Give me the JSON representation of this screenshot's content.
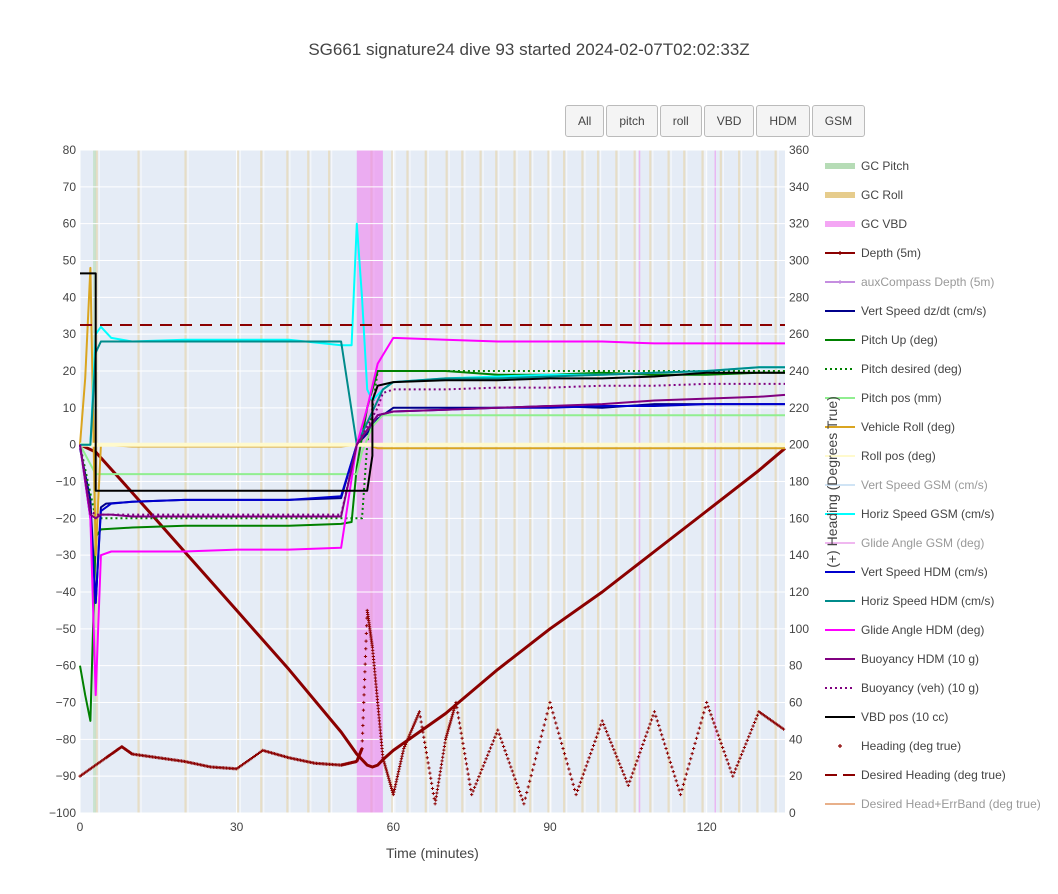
{
  "title": "SG661 signature24 dive 93 started 2024-02-07T02:02:33Z",
  "buttons": [
    "All",
    "pitch",
    "roll",
    "VBD",
    "HDM",
    "GSM"
  ],
  "chart_data": {
    "type": "line",
    "xlabel": "Time (minutes)",
    "ylabel": "",
    "y2label": "(+) Heading (Degrees True)",
    "xlim": [
      0,
      135
    ],
    "ylim": [
      -100,
      80
    ],
    "y2lim": [
      0,
      360
    ],
    "xticks": [
      0,
      30,
      60,
      90,
      120
    ],
    "yticks": [
      -100,
      -90,
      -80,
      -70,
      -60,
      -50,
      -40,
      -30,
      -20,
      -10,
      0,
      10,
      20,
      30,
      40,
      50,
      60,
      70,
      80
    ],
    "y2ticks": [
      0,
      20,
      40,
      60,
      80,
      100,
      120,
      140,
      160,
      180,
      200,
      220,
      240,
      260,
      280,
      300,
      320,
      340,
      360
    ],
    "grid": true,
    "legend_position": "right",
    "gc_vbd_band": [
      53,
      58
    ],
    "series": [
      {
        "name": "GC Pitch",
        "color": "#b6dcb6",
        "style": "band",
        "visible": true
      },
      {
        "name": "GC Roll",
        "color": "#e6cc8c",
        "style": "band",
        "visible": true
      },
      {
        "name": "GC VBD",
        "color": "#f4a6f4",
        "style": "band",
        "visible": true
      },
      {
        "name": "Depth (5m)",
        "color": "#8b0000",
        "style": "line-marker",
        "visible": true,
        "x": [
          0,
          3,
          10,
          20,
          30,
          40,
          50,
          53,
          55,
          56,
          57,
          58,
          60,
          70,
          80,
          90,
          100,
          110,
          120,
          130,
          135
        ],
        "y": [
          0,
          -2,
          -13,
          -29,
          -45,
          -61,
          -78,
          -84,
          -87,
          -87.5,
          -87,
          -85.5,
          -83,
          -73,
          -61,
          -50,
          -40,
          -29,
          -18,
          -7,
          -1
        ]
      },
      {
        "name": "auxCompass Depth (5m)",
        "color": "#c58ee0",
        "style": "line-marker",
        "visible": false
      },
      {
        "name": "Vert Speed dz/dt (cm/s)",
        "color": "#00008b",
        "style": "line",
        "visible": true,
        "x": [
          0,
          2,
          3,
          4,
          5,
          10,
          20,
          30,
          40,
          50,
          53,
          55,
          57,
          59,
          60,
          70,
          80,
          90,
          100,
          110,
          120,
          130,
          135
        ],
        "y": [
          -1,
          -15,
          -43,
          -17,
          -16,
          -15.5,
          -15,
          -15,
          -15,
          -14.5,
          0,
          3,
          7,
          9,
          10,
          10,
          10,
          10.5,
          10,
          11,
          11,
          11,
          11
        ]
      },
      {
        "name": "Pitch Up (deg)",
        "color": "#008000",
        "style": "line",
        "visible": true,
        "x": [
          0,
          1,
          2,
          3,
          4,
          10,
          20,
          30,
          40,
          50,
          52,
          53,
          55,
          57,
          60,
          70,
          80,
          90,
          100,
          110,
          120,
          130,
          135
        ],
        "y": [
          -60,
          -68,
          -75,
          -25,
          -23,
          -22.5,
          -22,
          -22,
          -22,
          -21.5,
          -21,
          -6,
          10,
          20,
          20,
          20,
          19,
          19,
          19.5,
          19,
          19,
          19.5,
          19.5
        ]
      },
      {
        "name": "Pitch desired (deg)",
        "color": "#008000",
        "style": "dot",
        "visible": true,
        "x": [
          0,
          3,
          5,
          20,
          40,
          52,
          54,
          55,
          57,
          60,
          70,
          80,
          90,
          100,
          110,
          120,
          130,
          135
        ],
        "y": [
          0,
          -20,
          -20,
          -20,
          -20,
          -20,
          -20,
          0,
          20,
          20,
          20,
          20,
          20,
          20,
          20,
          20,
          20,
          20
        ]
      },
      {
        "name": "Pitch pos (mm)",
        "color": "#90ee90",
        "style": "line",
        "visible": true,
        "x": [
          0,
          3,
          5,
          20,
          40,
          53,
          54,
          56,
          58,
          60,
          80,
          100,
          120,
          135
        ],
        "y": [
          0,
          -8,
          -8,
          -8,
          -8,
          -8,
          -2,
          5,
          8,
          8,
          8,
          8,
          8,
          8
        ]
      },
      {
        "name": "Vehicle Roll (deg)",
        "color": "#daa520",
        "style": "line",
        "visible": true,
        "x": [
          0,
          1,
          2,
          3,
          4,
          10,
          20,
          30,
          40,
          50,
          53,
          55,
          57,
          60,
          70,
          80,
          90,
          100,
          110,
          120,
          130,
          135
        ],
        "y": [
          0,
          18,
          48,
          -30,
          0,
          -0.5,
          -0.5,
          -0.5,
          -0.5,
          -0.5,
          0,
          0,
          -1,
          -1,
          -1,
          -1,
          -1,
          -1,
          -1,
          -1,
          -1,
          -1
        ]
      },
      {
        "name": "Roll pos (deg)",
        "color": "#fffacd",
        "style": "line",
        "visible": true,
        "x": [
          0,
          135
        ],
        "y": [
          0,
          0
        ]
      },
      {
        "name": "Vert Speed GSM (cm/s)",
        "color": "#d0e4f5",
        "style": "line",
        "visible": false
      },
      {
        "name": "Horiz Speed GSM (cm/s)",
        "color": "#00ffff",
        "style": "line",
        "visible": true,
        "x": [
          0,
          2,
          3,
          4,
          6,
          10,
          20,
          30,
          40,
          50,
          52,
          53,
          54,
          55,
          56,
          58,
          60,
          70,
          80,
          90,
          100,
          110,
          120,
          130,
          135
        ],
        "y": [
          0,
          0,
          30,
          32,
          29,
          28,
          28.5,
          28.5,
          28.5,
          27,
          27,
          60,
          40,
          15,
          12,
          15,
          17,
          18,
          18.5,
          19,
          19,
          19.5,
          20,
          21,
          21
        ]
      },
      {
        "name": "Glide Angle GSM (deg)",
        "color": "#f0b8f0",
        "style": "line",
        "visible": false
      },
      {
        "name": "Vert Speed HDM (cm/s)",
        "color": "#0000cd",
        "style": "line",
        "visible": true,
        "x": [
          0,
          2,
          3,
          4,
          6,
          10,
          20,
          30,
          40,
          50,
          53,
          55,
          57,
          60,
          70,
          80,
          90,
          100,
          110,
          120,
          130,
          135
        ],
        "y": [
          0,
          -20,
          -43,
          -18,
          -16,
          -15.5,
          -15,
          -15,
          -15,
          -14,
          0,
          4,
          8,
          9,
          9.5,
          10,
          10,
          10.5,
          10.5,
          11,
          11,
          11
        ]
      },
      {
        "name": "Horiz Speed HDM (cm/s)",
        "color": "#008b8b",
        "style": "line",
        "visible": true,
        "x": [
          0,
          2,
          3,
          4,
          6,
          10,
          20,
          30,
          40,
          50,
          53,
          55,
          57,
          58,
          60,
          70,
          80,
          90,
          100,
          110,
          120,
          130,
          135
        ],
        "y": [
          0,
          0,
          25,
          28,
          28,
          28,
          28,
          28,
          28,
          28,
          0,
          6,
          12,
          15,
          17,
          18,
          18,
          18.5,
          19,
          19.5,
          20,
          21,
          21
        ]
      },
      {
        "name": "Glide Angle HDM (deg)",
        "color": "#ff00ff",
        "style": "line",
        "visible": true,
        "x": [
          0,
          2,
          3,
          4,
          6,
          10,
          20,
          30,
          40,
          50,
          53,
          55,
          57,
          60,
          70,
          80,
          90,
          100,
          110,
          120,
          130,
          135
        ],
        "y": [
          0,
          -20,
          -68,
          -30,
          -29,
          -29,
          -29,
          -28.5,
          -28.5,
          -28,
          0,
          10,
          22,
          29,
          28.5,
          28,
          28,
          28,
          27.5,
          27.5,
          27.5,
          27.5
        ]
      },
      {
        "name": "Buoyancy HDM (10 g)",
        "color": "#800080",
        "style": "line",
        "visible": true,
        "x": [
          0,
          2,
          3,
          4,
          6,
          10,
          20,
          30,
          40,
          50,
          53,
          55,
          57,
          60,
          70,
          80,
          90,
          100,
          110,
          120,
          130,
          135
        ],
        "y": [
          0,
          -19,
          -20,
          -19,
          -19,
          -19.5,
          -19.5,
          -19.5,
          -19.5,
          -19.5,
          0,
          4,
          8,
          9,
          9.5,
          10,
          10.5,
          11,
          12,
          12.5,
          13,
          13.5
        ]
      },
      {
        "name": "Buoyancy (veh) (10 g)",
        "color": "#800080",
        "style": "dot",
        "visible": true,
        "x": [
          0,
          2,
          3,
          4,
          10,
          20,
          30,
          40,
          50,
          53,
          55,
          57,
          58,
          60,
          70,
          80,
          90,
          100,
          110,
          120,
          130,
          135
        ],
        "y": [
          0,
          -18,
          -19,
          -19,
          -19,
          -19,
          -19,
          -19,
          -19,
          0,
          5,
          10,
          14,
          15,
          15,
          15.5,
          15.5,
          16,
          16,
          16.5,
          16.5,
          16.5
        ]
      },
      {
        "name": "VBD pos (10 cc)",
        "color": "#000000",
        "style": "step",
        "visible": true,
        "x": [
          0,
          3,
          3,
          53,
          55,
          56,
          56,
          57,
          57,
          60,
          70,
          80,
          90,
          100,
          110,
          120,
          130,
          135
        ],
        "y": [
          46.5,
          46.5,
          -12.5,
          -12.5,
          -12.5,
          -3,
          12,
          16,
          16,
          17,
          17.5,
          17.5,
          18,
          18,
          18.5,
          19.5,
          19.5,
          19.5
        ]
      },
      {
        "name": "Heading (deg true)",
        "color": "#8b0000",
        "style": "marker",
        "visible": true,
        "x": [
          0,
          5,
          8,
          10,
          15,
          20,
          25,
          30,
          35,
          40,
          45,
          50,
          53,
          54,
          55,
          56,
          57,
          58,
          60,
          62,
          65,
          68,
          70,
          72,
          75,
          80,
          85,
          90,
          95,
          100,
          105,
          110,
          115,
          120,
          125,
          130,
          135
        ],
        "y": [
          20,
          30,
          36,
          32,
          30,
          28,
          25,
          24,
          34,
          30,
          27,
          26,
          28,
          35,
          110,
          90,
          60,
          30,
          10,
          35,
          55,
          5,
          40,
          60,
          10,
          45,
          5,
          60,
          10,
          50,
          15,
          55,
          10,
          60,
          20,
          55,
          45
        ]
      },
      {
        "name": "Desired Heading (deg true)",
        "color": "#8b0000",
        "style": "dash",
        "visible": true,
        "x": [
          0,
          135
        ],
        "y": [
          265,
          265
        ]
      },
      {
        "name": "Desired Head+ErrBand (deg true)",
        "color": "#e8b08a",
        "style": "line",
        "visible": false
      }
    ]
  }
}
